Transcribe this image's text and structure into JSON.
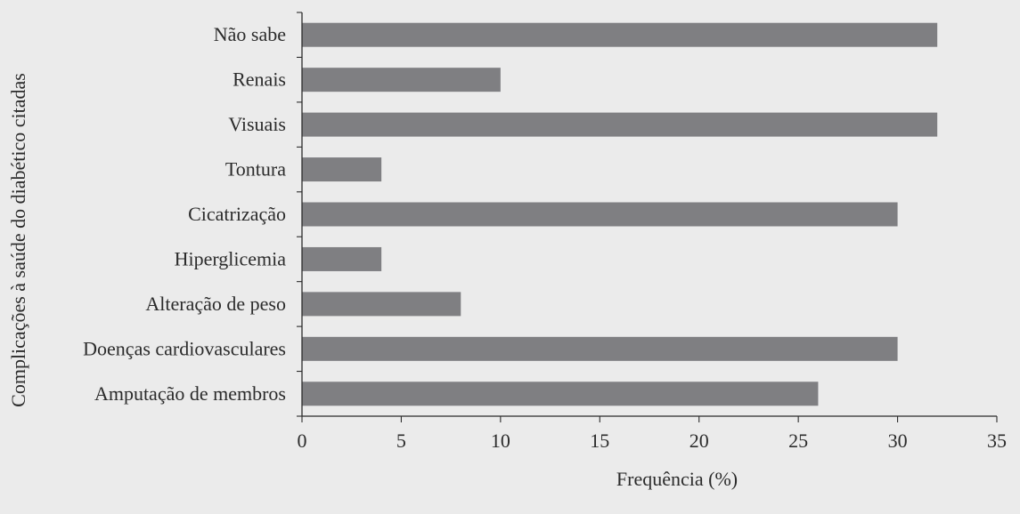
{
  "chart_data": {
    "type": "bar",
    "orientation": "horizontal",
    "categories": [
      "Não sabe",
      "Renais",
      "Visuais",
      "Tontura",
      "Cicatrização",
      "Hiperglicemia",
      "Alteração de peso",
      "Doenças cardiovasculares",
      "Amputação de membros"
    ],
    "values": [
      32,
      10,
      32,
      4,
      30,
      4,
      8,
      30,
      26
    ],
    "xlabel": "Frequência (%)",
    "ylabel": "Complicações à saúde do diabético citadas",
    "xlim": [
      0,
      35
    ],
    "xticks": [
      "0",
      "5",
      "10",
      "15",
      "20",
      "25",
      "30",
      "35"
    ],
    "grid": false,
    "colors": {
      "bar": "#7f7f82",
      "axis": "#2b2b2b",
      "background": "#ebebeb"
    }
  }
}
